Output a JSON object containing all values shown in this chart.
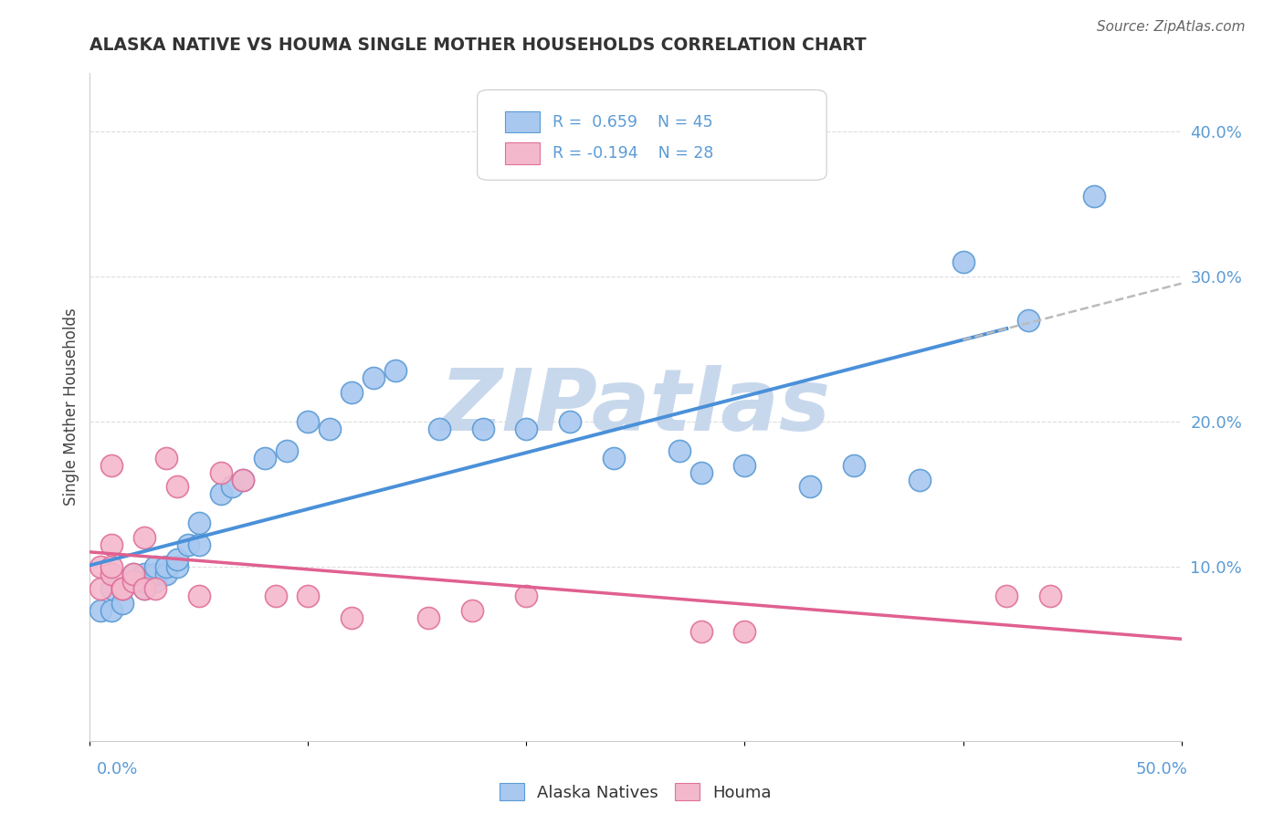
{
  "title": "ALASKA NATIVE VS HOUMA SINGLE MOTHER HOUSEHOLDS CORRELATION CHART",
  "source_text": "Source: ZipAtlas.com",
  "ylabel": "Single Mother Households",
  "xlim": [
    0.0,
    0.5
  ],
  "ylim": [
    -0.02,
    0.44
  ],
  "alaska_color": "#A8C8F0",
  "houma_color": "#F4B8CC",
  "alaska_edge_color": "#5B9BD5",
  "houma_edge_color": "#E0709A",
  "alaska_line_color": "#4A90D9",
  "houma_line_color": "#E06090",
  "trend_dashed_color": "#BBBBBB",
  "tick_color": "#5B9BD5",
  "grid_color": "#DDDDDD",
  "alaska_R": 0.659,
  "alaska_N": 45,
  "houma_R": -0.194,
  "houma_N": 28,
  "watermark": "ZIPatlas",
  "watermark_color": "#C8D8EC",
  "alaska_points_x": [
    0.005,
    0.01,
    0.01,
    0.015,
    0.015,
    0.02,
    0.02,
    0.02,
    0.025,
    0.025,
    0.025,
    0.03,
    0.03,
    0.03,
    0.035,
    0.035,
    0.04,
    0.04,
    0.045,
    0.05,
    0.05,
    0.06,
    0.065,
    0.07,
    0.08,
    0.09,
    0.1,
    0.11,
    0.12,
    0.13,
    0.14,
    0.16,
    0.18,
    0.2,
    0.22,
    0.24,
    0.27,
    0.28,
    0.3,
    0.33,
    0.35,
    0.38,
    0.4,
    0.43,
    0.46
  ],
  "alaska_points_y": [
    0.07,
    0.07,
    0.085,
    0.075,
    0.085,
    0.09,
    0.09,
    0.095,
    0.085,
    0.09,
    0.095,
    0.09,
    0.095,
    0.1,
    0.095,
    0.1,
    0.1,
    0.105,
    0.115,
    0.115,
    0.13,
    0.15,
    0.155,
    0.16,
    0.175,
    0.18,
    0.2,
    0.195,
    0.22,
    0.23,
    0.235,
    0.195,
    0.195,
    0.195,
    0.2,
    0.175,
    0.18,
    0.165,
    0.17,
    0.155,
    0.17,
    0.16,
    0.31,
    0.27,
    0.355
  ],
  "houma_points_x": [
    0.005,
    0.005,
    0.01,
    0.01,
    0.01,
    0.01,
    0.015,
    0.015,
    0.02,
    0.02,
    0.025,
    0.025,
    0.03,
    0.035,
    0.04,
    0.05,
    0.06,
    0.07,
    0.085,
    0.1,
    0.12,
    0.155,
    0.175,
    0.2,
    0.28,
    0.3,
    0.42,
    0.44
  ],
  "houma_points_y": [
    0.085,
    0.1,
    0.095,
    0.1,
    0.115,
    0.17,
    0.085,
    0.085,
    0.09,
    0.095,
    0.085,
    0.12,
    0.085,
    0.175,
    0.155,
    0.08,
    0.165,
    0.16,
    0.08,
    0.08,
    0.065,
    0.065,
    0.07,
    0.08,
    0.055,
    0.055,
    0.08,
    0.08
  ]
}
